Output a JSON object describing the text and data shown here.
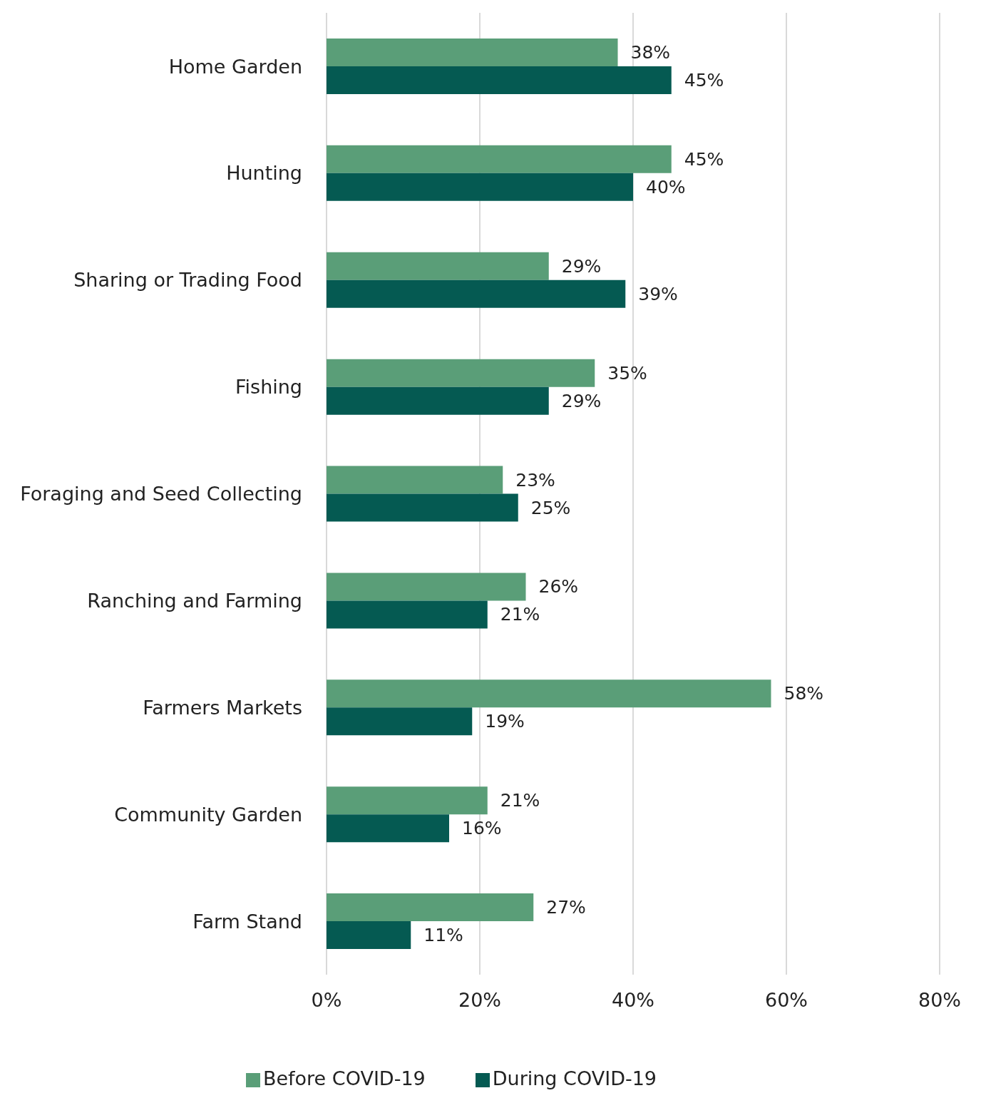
{
  "chart_data": {
    "type": "bar",
    "orientation": "horizontal",
    "categories": [
      "Home Garden",
      "Hunting",
      "Sharing or Trading Food",
      "Fishing",
      "Foraging and Seed Collecting",
      "Ranching and Farming",
      "Farmers Markets",
      "Community Garden",
      "Farm Stand"
    ],
    "series": [
      {
        "name": "Before COVID-19",
        "color": "#5a9e78",
        "values": [
          38,
          45,
          29,
          35,
          23,
          26,
          58,
          21,
          27
        ],
        "value_labels": [
          "38%",
          "45%",
          "29%",
          "35%",
          "23%",
          "26%",
          "58%",
          "21%",
          "27%"
        ]
      },
      {
        "name": "During COVID-19",
        "color": "#055a52",
        "values": [
          45,
          40,
          39,
          29,
          25,
          21,
          19,
          16,
          11
        ],
        "value_labels": [
          "45%",
          "40%",
          "39%",
          "29%",
          "25%",
          "21%",
          "19%",
          "16%",
          "11%"
        ]
      }
    ],
    "xlim": [
      0,
      80
    ],
    "xticks": [
      {
        "value": 0,
        "label": "0%"
      },
      {
        "value": 20,
        "label": "20%"
      },
      {
        "value": 40,
        "label": "40%"
      },
      {
        "value": 60,
        "label": "60%"
      },
      {
        "value": 80,
        "label": "80%"
      }
    ],
    "grid": "x",
    "legend": "bottom"
  }
}
